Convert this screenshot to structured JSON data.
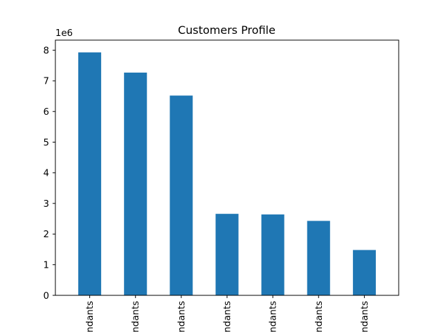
{
  "chart_data": {
    "type": "bar",
    "title": "Customers Profile",
    "xlabel": "",
    "ylabel": "",
    "offset_label": "1e6",
    "categories": [
      "ndants",
      "ndants",
      "ndants",
      "ndants",
      "ndants",
      "ndants",
      "ndants"
    ],
    "values": [
      7930000,
      7270000,
      6520000,
      2660000,
      2640000,
      2430000,
      1480000
    ],
    "ylim": [
      0,
      8330000
    ],
    "y_ticks": [
      0,
      1,
      2,
      3,
      4,
      5,
      6,
      7,
      8
    ],
    "y_tick_labels": [
      "0",
      "1",
      "2",
      "3",
      "4",
      "5",
      "6",
      "7",
      "8"
    ],
    "y_scale": 1000000,
    "grid": false,
    "legend": "none",
    "bar_color": "#1f77b4"
  }
}
